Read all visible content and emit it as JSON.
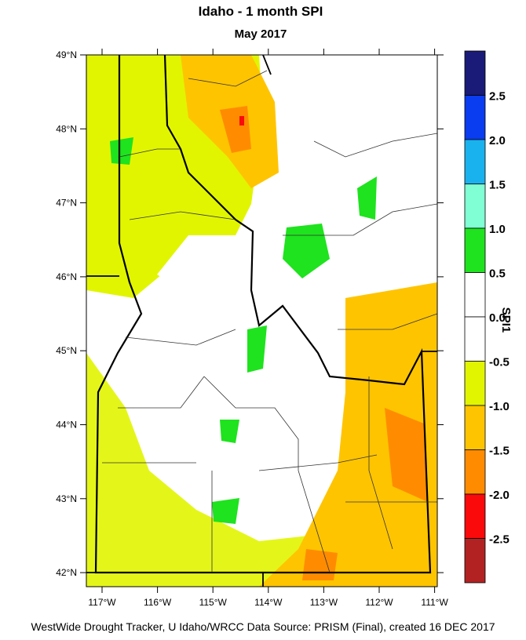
{
  "header": {
    "title": "Idaho - 1 month SPI",
    "subtitle": "May 2017"
  },
  "map": {
    "lat_labels": [
      "49°N",
      "48°N",
      "47°N",
      "46°N",
      "45°N",
      "44°N",
      "43°N",
      "42°N"
    ],
    "lon_labels": [
      "117°W",
      "116°W",
      "115°W",
      "114°W",
      "113°W",
      "112°W",
      "111°W"
    ]
  },
  "colorbar": {
    "title": "SPI1",
    "labels": [
      "2.5",
      "2.0",
      "1.5",
      "1.0",
      "0.5",
      "0.0",
      "-0.5",
      "-1.0",
      "-1.5",
      "-2.0",
      "-2.5"
    ],
    "colors": [
      "#1a1a78",
      "#0a3cf0",
      "#19b2ef",
      "#80ffd4",
      "#1ee31e",
      "#ffffff",
      "#ffffff",
      "#e1f500",
      "#ffc400",
      "#ff8c00",
      "#fa0a0a",
      "#b22222"
    ]
  },
  "footer": "WestWide Drought Tracker, U Idaho/WRCC Data Source: PRISM (Final), created 16 DEC 2017"
}
